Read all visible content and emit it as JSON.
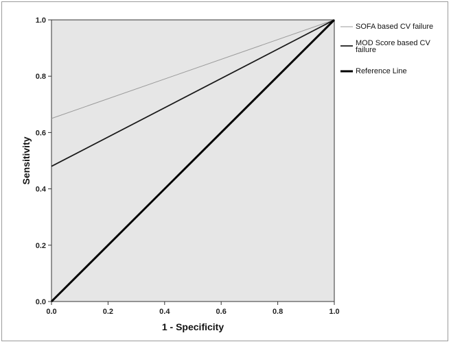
{
  "chart_data": {
    "type": "line",
    "xlabel": "1 - Specificity",
    "ylabel": "Sensitivity",
    "xlim": [
      0.0,
      1.0
    ],
    "ylim": [
      0.0,
      1.0
    ],
    "x_ticks": [
      "0.0",
      "0.2",
      "0.4",
      "0.6",
      "0.8",
      "1.0"
    ],
    "y_ticks": [
      "0.0",
      "0.2",
      "0.4",
      "0.6",
      "0.8",
      "1.0"
    ],
    "grid": false,
    "legend_position": "top-right",
    "plot_background": "#e6e6e6",
    "series": [
      {
        "name": "SOFA based CV failure",
        "color": "#9a9a9a",
        "width": "thin",
        "points": [
          [
            0.0,
            0.65
          ],
          [
            1.0,
            1.0
          ]
        ]
      },
      {
        "name": "MOD Score based CV failure",
        "color": "#1a1a1a",
        "width": "medium",
        "points": [
          [
            0.0,
            0.48
          ],
          [
            1.0,
            1.0
          ]
        ]
      },
      {
        "name": "Reference Line",
        "color": "#000000",
        "width": "thick",
        "points": [
          [
            0.0,
            0.0
          ],
          [
            1.0,
            1.0
          ]
        ]
      }
    ]
  }
}
